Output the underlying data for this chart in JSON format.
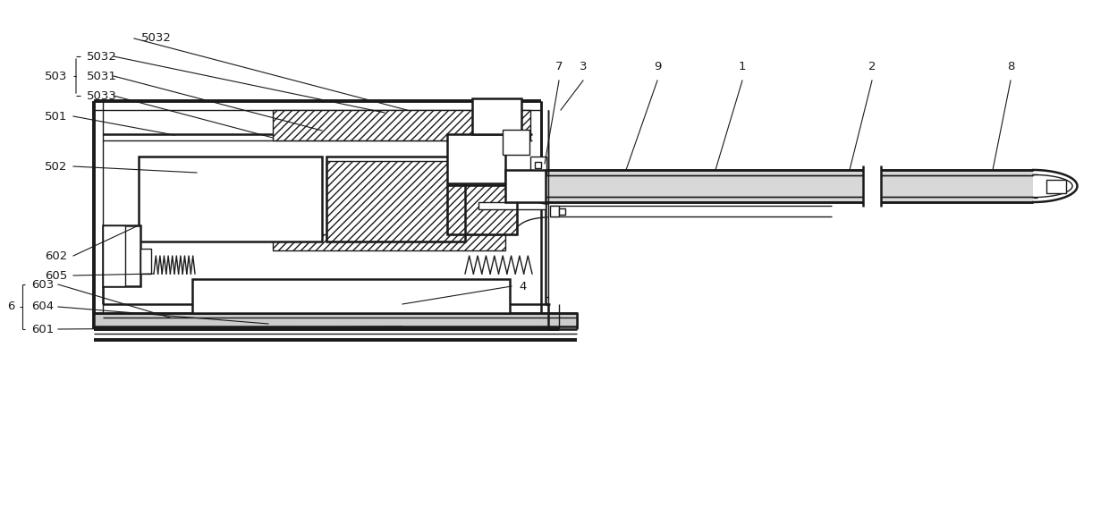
{
  "bg_color": "#ffffff",
  "lc": "#1a1a1a",
  "figsize": [
    12.4,
    5.78
  ],
  "dpi": 100,
  "xlim": [
    0,
    12.4
  ],
  "ylim": [
    0,
    5.78
  ]
}
